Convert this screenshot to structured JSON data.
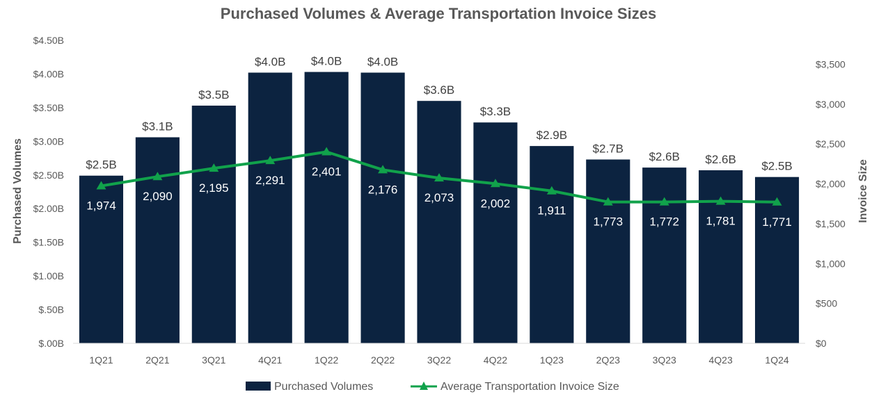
{
  "chart_data": {
    "type": "bar+line",
    "title": "Purchased Volumes & Average Transportation Invoice Sizes",
    "categories": [
      "1Q21",
      "2Q21",
      "3Q21",
      "4Q21",
      "1Q22",
      "2Q22",
      "3Q22",
      "4Q22",
      "1Q23",
      "2Q23",
      "3Q23",
      "4Q23",
      "1Q24"
    ],
    "left_axis": {
      "label": "Purchased Volumes",
      "range": [
        0,
        4.5
      ],
      "tick_values": [
        0,
        0.5,
        1,
        1.5,
        2,
        2.5,
        3,
        3.5,
        4,
        4.5
      ],
      "tick_labels": [
        "$.00B",
        "$.50B",
        "$1.00B",
        "$1.50B",
        "$2.00B",
        "$2.50B",
        "$3.00B",
        "$3.50B",
        "$4.00B",
        "$4.50B"
      ]
    },
    "right_axis": {
      "label": "Invoice Size",
      "range": [
        0,
        3800
      ],
      "tick_values": [
        0,
        500,
        1000,
        1500,
        2000,
        2500,
        3000,
        3500
      ],
      "tick_labels": [
        "$0",
        "$500",
        "$1,000",
        "$1,500",
        "$2,000",
        "$2,500",
        "$3,000",
        "$3,500"
      ]
    },
    "series": [
      {
        "name": "Purchased Volumes",
        "type": "bar",
        "axis": "left",
        "color": "#0c2340",
        "values": [
          2.49,
          3.06,
          3.53,
          4.02,
          4.03,
          4.02,
          3.6,
          3.28,
          2.93,
          2.73,
          2.61,
          2.57,
          2.47
        ],
        "labels": [
          "$2.5B",
          "$3.1B",
          "$3.5B",
          "$4.0B",
          "$4.0B",
          "$4.0B",
          "$3.6B",
          "$3.3B",
          "$2.9B",
          "$2.7B",
          "$2.6B",
          "$2.6B",
          "$2.5B"
        ]
      },
      {
        "name": "Average Transportation Invoice Size",
        "type": "line",
        "axis": "right",
        "color": "#11a24b",
        "marker": "triangle",
        "values": [
          1974,
          2090,
          2195,
          2291,
          2401,
          2176,
          2073,
          2002,
          1911,
          1773,
          1772,
          1781,
          1771
        ],
        "labels": [
          "1,974",
          "2,090",
          "2,195",
          "2,291",
          "2,401",
          "2,176",
          "2,073",
          "2,002",
          "1,911",
          "1,773",
          "1,772",
          "1,781",
          "1,771"
        ]
      }
    ],
    "legend": "bottom-center",
    "grid": false,
    "colors": {
      "text": "#595959",
      "axis_line": "#d9d9d9",
      "bar_label": "#404040",
      "line_label": "#ffffff"
    }
  }
}
